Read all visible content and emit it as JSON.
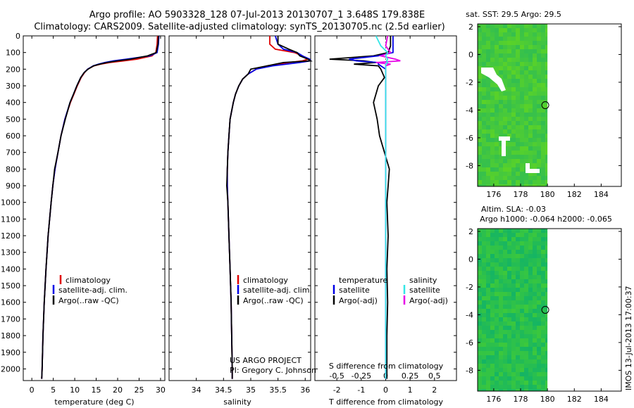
{
  "header": {
    "line1": "Argo profile: AO 5903328_128 07-Jul-2013 20130707_1 3.648S 179.838E",
    "line2": "Climatology: CARS2009. Satellite-adjusted climatology: synTS_20130705.nc (2.5d earlier)"
  },
  "colors": {
    "climatology": "#e00000",
    "satellite": "#0000e6",
    "argo": "#000000",
    "sal_satellite": "#33e6e6",
    "sal_argo": "#e600e6",
    "map_water": "#2dbe4a",
    "map_no_data": "#ffffff"
  },
  "depth_axis": {
    "ticks": [
      "0",
      "100",
      "200",
      "300",
      "400",
      "500",
      "600",
      "700",
      "800",
      "900",
      "1000",
      "1100",
      "1200",
      "1300",
      "1400",
      "1500",
      "1600",
      "1700",
      "1800",
      "1900",
      "2000"
    ],
    "range": [
      0,
      2070
    ]
  },
  "chart_data": [
    {
      "type": "line",
      "panel": "temperature",
      "xlabel": "temperature (deg C)",
      "ylabel": "depth",
      "xlim": [
        -2,
        31
      ],
      "ylim": [
        2070,
        0
      ],
      "xticks": [
        "0",
        "5",
        "10",
        "15",
        "20",
        "25",
        "30"
      ],
      "xtick_values": [
        0,
        5,
        10,
        15,
        20,
        25,
        30
      ],
      "legend": [
        "climatology",
        "satellite-adj. clim.",
        "Argo(..raw -QC)"
      ],
      "depths": [
        0,
        50,
        100,
        120,
        140,
        150,
        160,
        170,
        180,
        200,
        220,
        250,
        300,
        350,
        400,
        500,
        600,
        700,
        800,
        900,
        1000,
        1200,
        1400,
        1600,
        1800,
        2000,
        2060
      ],
      "series": [
        {
          "name": "climatology",
          "values": [
            29.3,
            29.2,
            28.9,
            28.0,
            24.5,
            21.5,
            18.2,
            16.0,
            14.5,
            13.0,
            12.3,
            11.5,
            10.6,
            9.8,
            9.0,
            7.7,
            6.8,
            6.1,
            5.4,
            4.9,
            4.5,
            3.8,
            3.3,
            2.9,
            2.6,
            2.4,
            2.3
          ]
        },
        {
          "name": "satellite-adj. clim.",
          "values": [
            29.6,
            29.5,
            29.2,
            27.5,
            22.0,
            19.0,
            17.0,
            15.5,
            14.3,
            13.0,
            12.2,
            11.4,
            10.5,
            9.7,
            8.9,
            7.7,
            6.8,
            6.1,
            5.4,
            4.9,
            4.5,
            3.8,
            3.3,
            2.9,
            2.6,
            2.4,
            2.3
          ]
        },
        {
          "name": "Argo(..raw -QC)",
          "values": [
            29.5,
            29.4,
            29.0,
            27.0,
            23.0,
            20.0,
            17.5,
            15.8,
            14.4,
            13.1,
            12.2,
            11.4,
            10.5,
            9.7,
            8.9,
            7.8,
            6.8,
            6.1,
            5.3,
            4.9,
            4.5,
            3.8,
            3.3,
            2.9,
            2.6,
            2.4,
            2.3
          ]
        }
      ]
    },
    {
      "type": "line",
      "panel": "salinity",
      "xlabel": "salinity",
      "ylabel": "depth",
      "xlim": [
        33.5,
        36.1
      ],
      "ylim": [
        2070,
        0
      ],
      "xticks": [
        "34",
        "34.5",
        "35",
        "35.5",
        "36"
      ],
      "xtick_values": [
        34,
        34.5,
        35,
        35.5,
        36
      ],
      "legend": [
        "climatology",
        "satellite-adj. clim.",
        "Argo(..raw -QC)"
      ],
      "annotation": [
        "US ARGO PROJECT",
        "PI: Gregory C. Johnson"
      ],
      "depths": [
        0,
        50,
        80,
        100,
        120,
        140,
        150,
        160,
        180,
        200,
        230,
        260,
        300,
        350,
        400,
        500,
        600,
        700,
        800,
        900,
        1000,
        1200,
        1400,
        1600,
        1800,
        2000,
        2060
      ],
      "series": [
        {
          "name": "climatology",
          "values": [
            35.35,
            35.35,
            35.45,
            35.8,
            35.95,
            36.05,
            35.95,
            35.7,
            35.3,
            35.1,
            34.95,
            34.85,
            34.78,
            34.72,
            34.68,
            34.62,
            34.6,
            34.58,
            34.57,
            34.57,
            34.58,
            34.6,
            34.62,
            34.64,
            34.65,
            34.66,
            34.66
          ]
        },
        {
          "name": "satellite-adj. clim.",
          "values": [
            35.45,
            35.5,
            35.6,
            35.85,
            35.95,
            36.08,
            36.1,
            35.9,
            35.4,
            35.1,
            34.95,
            34.85,
            34.78,
            34.72,
            34.68,
            34.62,
            34.6,
            34.58,
            34.57,
            34.57,
            34.58,
            34.6,
            34.62,
            34.64,
            34.65,
            34.66,
            34.66
          ]
        },
        {
          "name": "Argo(..raw -QC)",
          "values": [
            35.5,
            35.5,
            35.7,
            35.85,
            35.9,
            36.05,
            36.1,
            35.6,
            35.3,
            35.0,
            34.95,
            34.85,
            34.78,
            34.72,
            34.68,
            34.62,
            34.6,
            34.58,
            34.57,
            34.56,
            34.58,
            34.6,
            34.62,
            34.64,
            34.65,
            34.66,
            34.66
          ]
        }
      ]
    },
    {
      "type": "line",
      "panel": "difference",
      "xlabel": "T difference from climatology",
      "xlabel_top": "S difference from climatology",
      "ylabel": "depth",
      "xlim": [
        -2.9,
        2.9
      ],
      "ylim": [
        2070,
        0
      ],
      "xticks": [
        "-2",
        "-1",
        "0",
        "1",
        "2"
      ],
      "xtick_values": [
        -2,
        -1,
        0,
        1,
        2
      ],
      "sticks": [
        "-0.5",
        "-0.25",
        "0",
        "0.25",
        "0.5"
      ],
      "stick_values": [
        -0.5,
        -0.25,
        0,
        0.25,
        0.5
      ],
      "s_scale": 4,
      "legend_headers": [
        "temperature",
        "salinity"
      ],
      "legend_t": [
        "satellite",
        "Argo(-adj)"
      ],
      "legend_s": [
        "satellite",
        "Argo(-adj)"
      ],
      "depths": [
        0,
        60,
        100,
        120,
        140,
        150,
        160,
        170,
        180,
        200,
        250,
        300,
        400,
        500,
        600,
        700,
        800,
        900,
        1000,
        1200,
        1400,
        1600,
        1800,
        2000,
        2060
      ],
      "series": [
        {
          "name": "T satellite",
          "values": [
            0.3,
            0.3,
            0.3,
            -0.3,
            -1.5,
            -1.2,
            -0.3,
            -0.3,
            -0.2,
            0.0,
            0.0,
            0.0,
            0.0,
            0.0,
            0.0,
            0.0,
            0.0,
            0.0,
            0.0,
            0.0,
            0.0,
            0.0,
            0.0,
            0.0,
            0.0
          ]
        },
        {
          "name": "T Argo(-adj)",
          "values": [
            0.2,
            0.2,
            0.1,
            -0.5,
            -2.3,
            -0.9,
            -0.4,
            -1.3,
            -0.3,
            -0.2,
            -0.05,
            -0.3,
            -0.5,
            -0.35,
            -0.25,
            -0.05,
            0.15,
            0.1,
            0.05,
            0.1,
            0.05,
            0.08,
            0.05,
            0.05,
            0.05
          ]
        },
        {
          "name": "S satellite",
          "values": [
            -0.1,
            -0.05,
            0.02,
            0.0,
            0.02,
            0.01,
            0.02,
            0.0,
            0.0,
            0.0,
            0.0,
            0.0,
            0.0,
            0.0,
            0.0,
            0.0,
            0.0,
            0.0,
            0.0,
            0.0,
            0.0,
            0.0,
            0.0,
            0.0,
            0.0
          ]
        },
        {
          "name": "S Argo(-adj)",
          "values": [
            0.02,
            0.0,
            0.05,
            -0.05,
            0.1,
            0.15,
            -0.1,
            0.05,
            0.0,
            0.0,
            0.0,
            0.0,
            0.0,
            0.0,
            0.0,
            0.0,
            0.0,
            0.0,
            0.0,
            0.0,
            0.0,
            0.0,
            0.0,
            0.0,
            0.0
          ]
        }
      ]
    },
    {
      "type": "heatmap",
      "panel": "sst_map",
      "title": "sat. SST: 29.5 Argo: 29.5",
      "xlim": [
        174.8,
        185.5
      ],
      "ylim": [
        -9.5,
        2.2
      ],
      "xticks": [
        "176",
        "178",
        "180",
        "182",
        "184"
      ],
      "xtick_values": [
        176,
        178,
        180,
        182,
        184
      ],
      "yticks": [
        "2",
        "0",
        "-2",
        "-4",
        "-6",
        "-8"
      ],
      "ytick_values": [
        2,
        0,
        -2,
        -4,
        -6,
        -8
      ],
      "data_lon_max": 180,
      "argo_position": [
        179.838,
        -3.648
      ]
    },
    {
      "type": "heatmap",
      "panel": "sla_map",
      "title": "Altim. SLA: -0.03",
      "subtitle": "Argo h1000: -0.064 h2000: -0.065",
      "xlim": [
        174.8,
        185.5
      ],
      "ylim": [
        -9.5,
        2.2
      ],
      "xticks": [
        "176",
        "178",
        "180",
        "182",
        "184"
      ],
      "xtick_values": [
        176,
        178,
        180,
        182,
        184
      ],
      "yticks": [
        "2",
        "0",
        "-2",
        "-4",
        "-6",
        "-8"
      ],
      "ytick_values": [
        2,
        0,
        -2,
        -4,
        -6,
        -8
      ],
      "data_lon_max": 180,
      "argo_position": [
        179.838,
        -3.648
      ]
    }
  ],
  "footer_stamp": "IMOS 13-Jul-2013 17:00:37"
}
